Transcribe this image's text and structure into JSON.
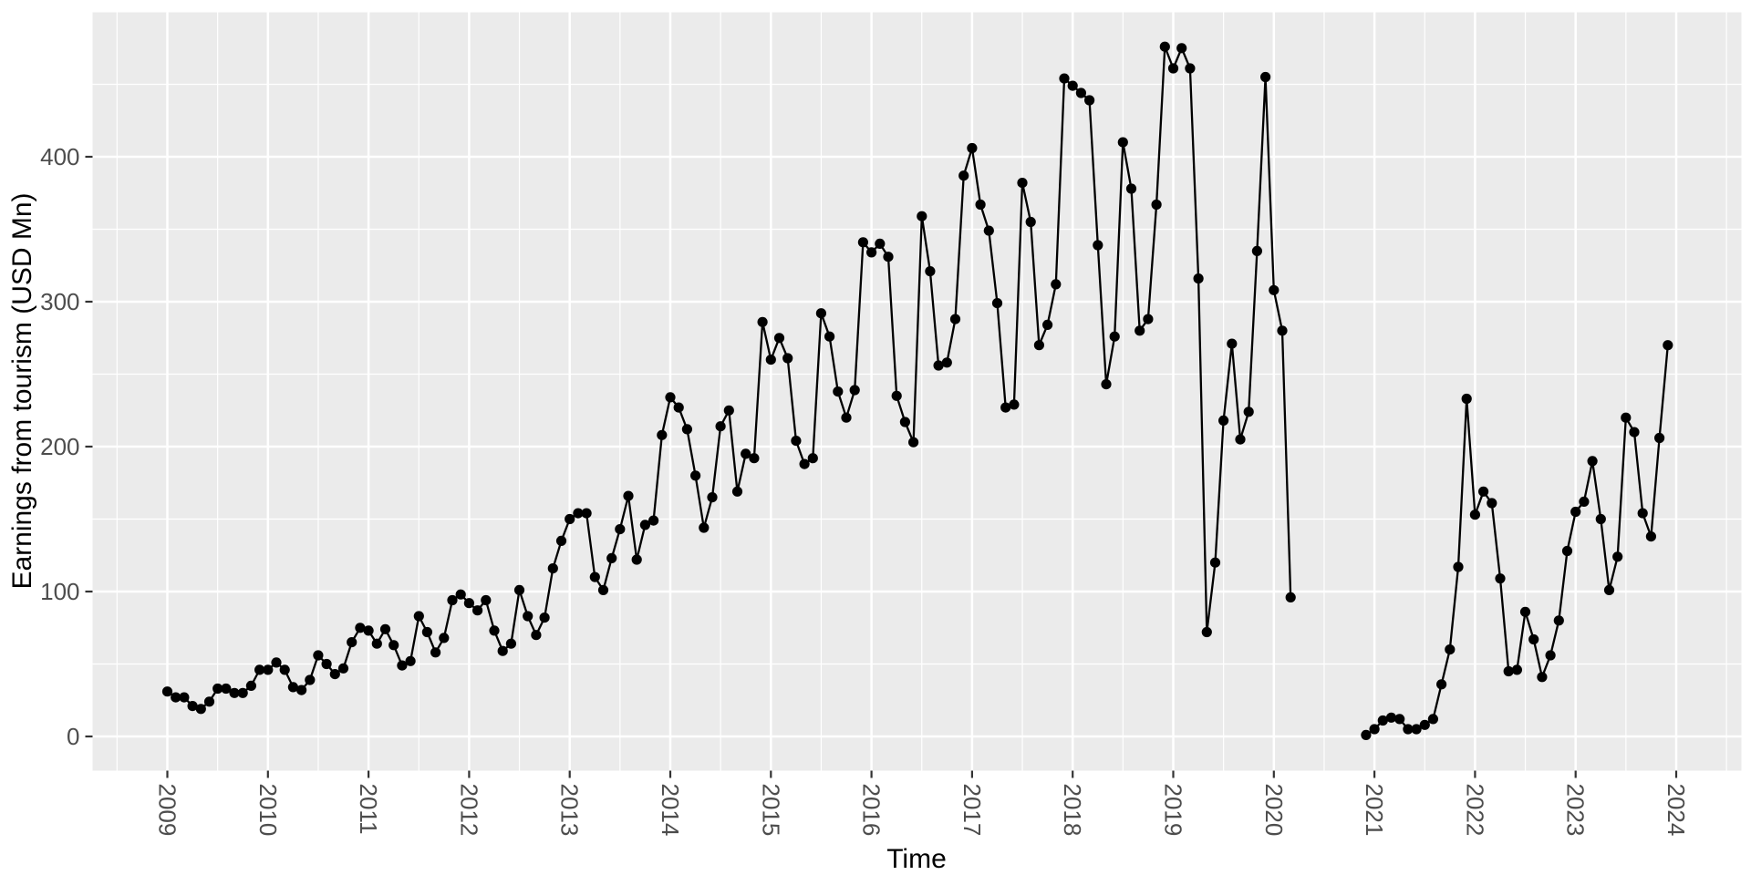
{
  "styles": {
    "panel_bg": "#EBEBEB",
    "grid_color": "#FFFFFF",
    "tick_color": "#333333",
    "axis_text_color": "#4D4D4D",
    "title_color": "#000000",
    "line_color": "#000000",
    "point_color": "#000000"
  },
  "chart_data": {
    "type": "line",
    "title": "",
    "xlabel": "Time",
    "ylabel": "Earnings from tourism (USD Mn)",
    "x_unit": "month",
    "x_start": "2009-01",
    "x_end": "2023-12",
    "x_ticks": [
      2009,
      2010,
      2011,
      2012,
      2013,
      2014,
      2015,
      2016,
      2017,
      2018,
      2019,
      2020,
      2021,
      2022,
      2023,
      2024
    ],
    "y_ticks": [
      0,
      100,
      200,
      300,
      400
    ],
    "y_minor_ticks": [
      50,
      150,
      250,
      350,
      450
    ],
    "x_minor_tick_years": [
      2008.5,
      2009.5,
      2010.5,
      2011.5,
      2012.5,
      2013.5,
      2014.5,
      2015.5,
      2016.5,
      2017.5,
      2018.5,
      2019.5,
      2020.5,
      2021.5,
      2022.5,
      2023.5,
      2024.5
    ],
    "ylim": [
      -24,
      500
    ],
    "xlim_years": [
      2008.26,
      2024.65
    ],
    "grid": true,
    "legend": "none",
    "marker": "point",
    "series": [
      {
        "name": "Earnings from tourism",
        "by_year": [
          {
            "year": 2009,
            "monthly": [
              31,
              27,
              27,
              21,
              19,
              24,
              33,
              33,
              30,
              30,
              35,
              46
            ]
          },
          {
            "year": 2010,
            "monthly": [
              46,
              51,
              46,
              34,
              32,
              39,
              56,
              50,
              43,
              47,
              65,
              75
            ]
          },
          {
            "year": 2011,
            "monthly": [
              73,
              64,
              74,
              63,
              49,
              52,
              83,
              72,
              58,
              68,
              94,
              98
            ]
          },
          {
            "year": 2012,
            "monthly": [
              92,
              87,
              94,
              73,
              59,
              64,
              101,
              83,
              70,
              82,
              116,
              135
            ]
          },
          {
            "year": 2013,
            "monthly": [
              150,
              154,
              154,
              110,
              101,
              123,
              143,
              166,
              122,
              146,
              149,
              208
            ]
          },
          {
            "year": 2014,
            "monthly": [
              234,
              227,
              212,
              180,
              144,
              165,
              214,
              225,
              169,
              195,
              192,
              286
            ]
          },
          {
            "year": 2015,
            "monthly": [
              260,
              275,
              261,
              204,
              188,
              192,
              292,
              276,
              238,
              220,
              239,
              341
            ]
          },
          {
            "year": 2016,
            "monthly": [
              334,
              340,
              331,
              235,
              217,
              203,
              359,
              321,
              256,
              258,
              288,
              387
            ]
          },
          {
            "year": 2017,
            "monthly": [
              406,
              367,
              349,
              299,
              227,
              229,
              382,
              355,
              270,
              284,
              312,
              454
            ]
          },
          {
            "year": 2018,
            "monthly": [
              449,
              444,
              439,
              339,
              243,
              276,
              410,
              378,
              280,
              288,
              367,
              476
            ]
          },
          {
            "year": 2019,
            "monthly": [
              461,
              475,
              461,
              316,
              72,
              120,
              218,
              271,
              205,
              224,
              335,
              455
            ]
          },
          {
            "year": 2020,
            "monthly": [
              308,
              280,
              96,
              null,
              null,
              null,
              null,
              null,
              null,
              null,
              null,
              1
            ]
          },
          {
            "year": 2021,
            "monthly": [
              5,
              11,
              13,
              12,
              5,
              5,
              8,
              12,
              36,
              60,
              117,
              233
            ]
          },
          {
            "year": 2022,
            "monthly": [
              153,
              169,
              161,
              109,
              45,
              46,
              86,
              67,
              41,
              56,
              80,
              128
            ]
          },
          {
            "year": 2023,
            "monthly": [
              155,
              162,
              190,
              150,
              101,
              124,
              220,
              210,
              154,
              138,
              206,
              270
            ]
          }
        ]
      }
    ]
  }
}
